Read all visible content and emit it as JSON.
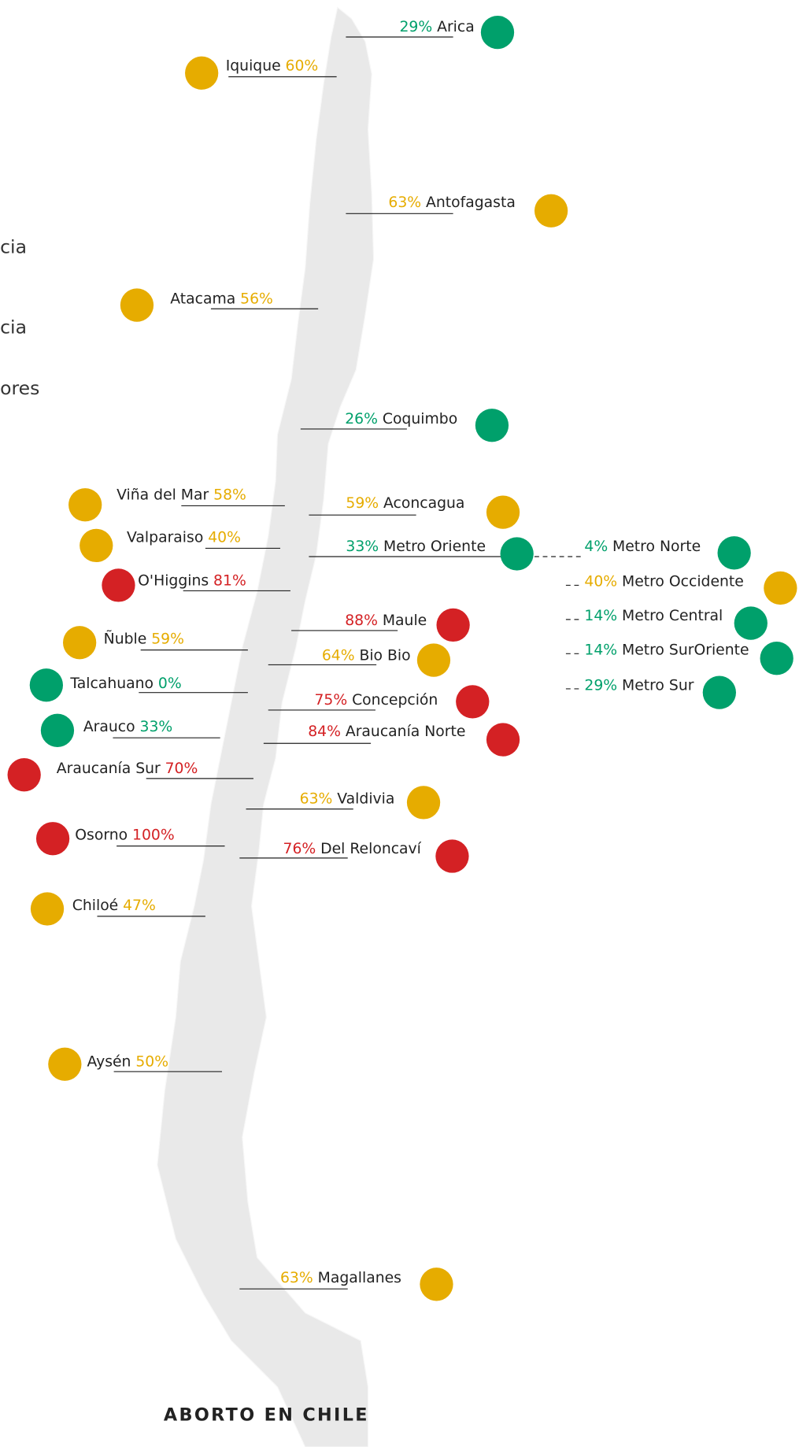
{
  "title": "ABORTO EN CHILE",
  "legend_fragments": [
    "cia",
    "cia",
    "ores"
  ],
  "regions": [
    {
      "name": "Arica",
      "percent": "29%",
      "color": "#00a06b"
    },
    {
      "name": "Iquique",
      "percent": "60%",
      "color": "#e6ac00"
    },
    {
      "name": "Antofagasta",
      "percent": "63%",
      "color": "#e6ac00"
    },
    {
      "name": "Atacama",
      "percent": "56%",
      "color": "#e6ac00"
    },
    {
      "name": "Coquimbo",
      "percent": "26%",
      "color": "#00a06b"
    },
    {
      "name": "Viña del Mar",
      "percent": "58%",
      "color": "#e6ac00"
    },
    {
      "name": "Aconcagua",
      "percent": "59%",
      "color": "#e6ac00"
    },
    {
      "name": "Valparaiso",
      "percent": "40%",
      "color": "#e6ac00"
    },
    {
      "name": "Metro Oriente",
      "percent": "33%",
      "color": "#00a06b"
    },
    {
      "name": "O'Higgins",
      "percent": "81%",
      "color": "#d42124"
    },
    {
      "name": "Maule",
      "percent": "88%",
      "color": "#d42124"
    },
    {
      "name": "Ñuble",
      "percent": "59%",
      "color": "#e6ac00"
    },
    {
      "name": "Bio Bio",
      "percent": "64%",
      "color": "#e6ac00"
    },
    {
      "name": "Talcahuano",
      "percent": "0%",
      "color": "#00a06b"
    },
    {
      "name": "Concepción",
      "percent": "75%",
      "color": "#d42124"
    },
    {
      "name": "Arauco",
      "percent": "33%",
      "color": "#00a06b"
    },
    {
      "name": "Araucanía Norte",
      "percent": "84%",
      "color": "#d42124"
    },
    {
      "name": "Araucanía Sur",
      "percent": "70%",
      "color": "#d42124"
    },
    {
      "name": "Valdivia",
      "percent": "63%",
      "color": "#e6ac00"
    },
    {
      "name": "Osorno",
      "percent": "100%",
      "color": "#d42124"
    },
    {
      "name": "Del Reloncaví",
      "percent": "76%",
      "color": "#d42124"
    },
    {
      "name": "Chiloé",
      "percent": "47%",
      "color": "#e6ac00"
    },
    {
      "name": "Aysén",
      "percent": "50%",
      "color": "#e6ac00"
    },
    {
      "name": "Magallanes",
      "percent": "63%",
      "color": "#e6ac00"
    },
    {
      "name": "Metro Norte",
      "percent": "4%",
      "color": "#00a06b"
    },
    {
      "name": "Metro Occidente",
      "percent": "40%",
      "color": "#e6ac00"
    },
    {
      "name": "Metro Central",
      "percent": "14%",
      "color": "#00a06b"
    },
    {
      "name": "Metro SurOriente",
      "percent": "14%",
      "color": "#00a06b"
    },
    {
      "name": "Metro Sur",
      "percent": "29%",
      "color": "#00a06b"
    }
  ]
}
